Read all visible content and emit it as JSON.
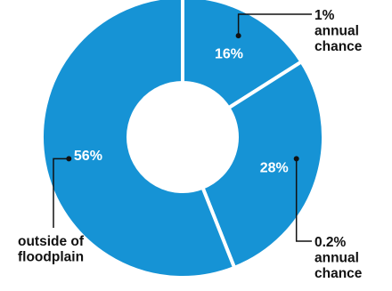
{
  "chart_data": {
    "type": "pie",
    "categories": [
      "1% annual chance",
      "0.2% annual chance",
      "outside of floodplain"
    ],
    "values": [
      16,
      28,
      56
    ],
    "value_labels": [
      "16%",
      "28%",
      "56%"
    ],
    "callout_lines": [
      [
        "1%",
        "annual",
        "chance"
      ],
      [
        "0.2%",
        "annual",
        "chance"
      ],
      [
        "outside of",
        "floodplain"
      ]
    ],
    "colors": [
      "#1693d5",
      "#1693d5",
      "#1693d5"
    ],
    "donut": true,
    "legend": "none"
  }
}
